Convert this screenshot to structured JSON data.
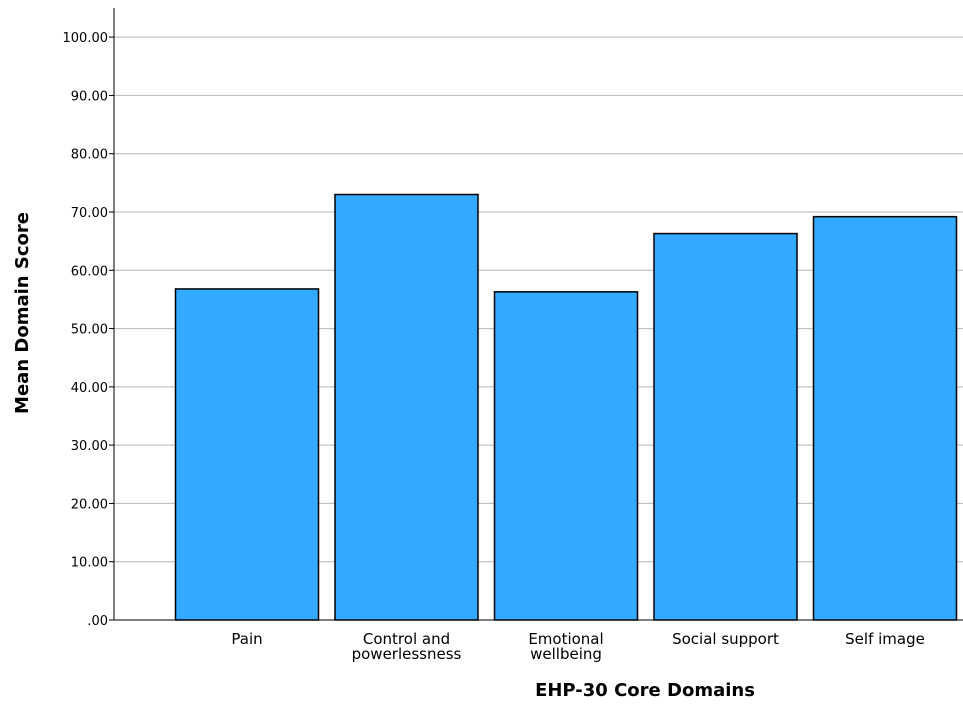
{
  "chart_data": {
    "type": "bar",
    "title": "",
    "xlabel": "EHP-30 Core Domains",
    "ylabel": "Mean Domain Score",
    "categories": [
      "Pain",
      "Control and powerlessness",
      "Emotional wellbeing",
      "Social support",
      "Self image"
    ],
    "category_label_lines": [
      [
        "Pain"
      ],
      [
        "Control and",
        "powerlessness"
      ],
      [
        "Emotional",
        "wellbeing"
      ],
      [
        "Social support"
      ],
      [
        "Self image"
      ]
    ],
    "values": [
      56.8,
      73.0,
      56.3,
      66.3,
      69.2
    ],
    "ylim": [
      0,
      105
    ],
    "yticks": [
      0,
      10,
      20,
      30,
      40,
      50,
      60,
      70,
      80,
      90,
      100
    ],
    "ytick_labels": [
      ".00",
      "10.00",
      "20.00",
      "30.00",
      "40.00",
      "50.00",
      "60.00",
      "70.00",
      "80.00",
      "90.00",
      "100.00"
    ],
    "grid": true,
    "legend": "none",
    "bar_color": "#33aaff",
    "bar_edge_color": "#000000",
    "grid_color": "#b4b4b4"
  }
}
